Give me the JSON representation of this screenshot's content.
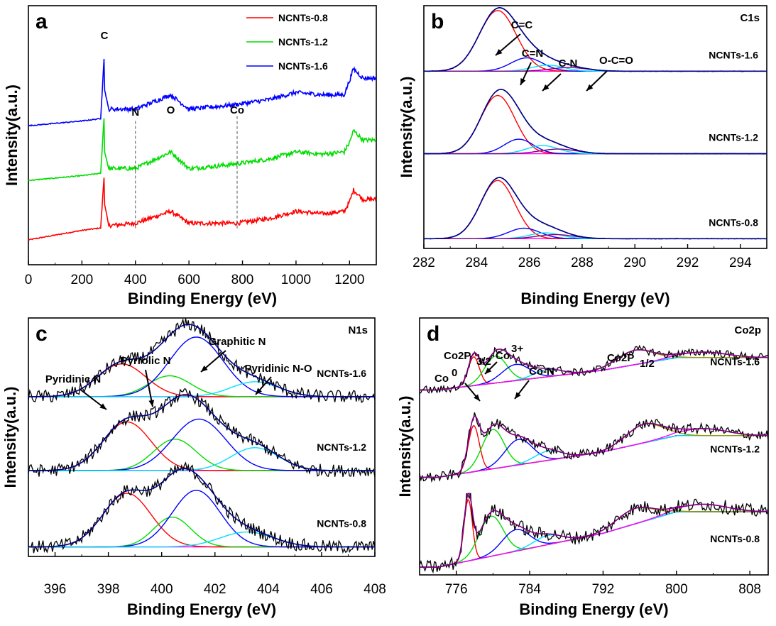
{
  "chart_data": [
    {
      "id": "a",
      "type": "line",
      "panel_label": "a",
      "xlabel": "Binding Energy (eV)",
      "ylabel": "Intensity(a.u.)",
      "xlim": [
        0,
        1300
      ],
      "xticks": [
        0,
        200,
        400,
        600,
        800,
        1000,
        1200
      ],
      "legend": {
        "position": "top-right",
        "entries": [
          "NCNTs-0.8",
          "NCNTs-1.2",
          "NCNTs-1.6"
        ]
      },
      "peak_labels": [
        {
          "text": "C",
          "x": 284
        },
        {
          "text": "N",
          "x": 400
        },
        {
          "text": "O",
          "x": 532
        },
        {
          "text": "Co",
          "x": 780
        }
      ],
      "series": [
        {
          "name": "NCNTs-0.8",
          "color": "#ff0000",
          "x": [
            0,
            100,
            200,
            270,
            283,
            284,
            285,
            300,
            400,
            532,
            600,
            700,
            780,
            900,
            1000,
            1100,
            1180,
            1200,
            1215,
            1250,
            1300
          ],
          "y": [
            0.03,
            0.05,
            0.07,
            0.08,
            0.3,
            0.55,
            0.18,
            0.09,
            0.1,
            0.15,
            0.1,
            0.1,
            0.1,
            0.12,
            0.15,
            0.14,
            0.15,
            0.19,
            0.24,
            0.2,
            0.2
          ]
        },
        {
          "name": "NCNTs-1.2",
          "color": "#00dd00",
          "x": [
            0,
            100,
            200,
            270,
            283,
            284,
            285,
            300,
            400,
            532,
            600,
            700,
            780,
            900,
            1000,
            1100,
            1180,
            1200,
            1215,
            1250,
            1300
          ],
          "y": [
            0.28,
            0.29,
            0.3,
            0.31,
            0.55,
            0.82,
            0.4,
            0.33,
            0.33,
            0.4,
            0.33,
            0.34,
            0.35,
            0.37,
            0.4,
            0.39,
            0.4,
            0.44,
            0.49,
            0.45,
            0.45
          ]
        },
        {
          "name": "NCNTs-1.6",
          "color": "#0000ff",
          "x": [
            0,
            100,
            200,
            270,
            283,
            284,
            285,
            300,
            400,
            532,
            600,
            700,
            780,
            900,
            1000,
            1100,
            1180,
            1200,
            1215,
            1250,
            1300
          ],
          "y": [
            0.51,
            0.52,
            0.53,
            0.54,
            0.8,
            1.0,
            0.66,
            0.58,
            0.58,
            0.64,
            0.58,
            0.59,
            0.6,
            0.62,
            0.65,
            0.64,
            0.64,
            0.7,
            0.75,
            0.71,
            0.71
          ]
        }
      ]
    },
    {
      "id": "b",
      "type": "line",
      "panel_label": "b",
      "panel_tag": "C1s",
      "xlabel": "Binding Energy (eV)",
      "ylabel": "Intensity(a.u.)",
      "xlim": [
        282,
        295
      ],
      "xticks": [
        282,
        284,
        286,
        288,
        290,
        292,
        294
      ],
      "stack": [
        {
          "name": "NCNTs-1.6",
          "baseline": 0.73,
          "height": 0.25,
          "components": [
            {
              "center": 284.8,
              "width": 0.7,
              "amp": 1.0
            },
            {
              "center": 285.9,
              "width": 0.6,
              "amp": 0.22
            },
            {
              "center": 286.7,
              "width": 0.6,
              "amp": 0.1
            },
            {
              "center": 287.5,
              "width": 0.7,
              "amp": 0.06
            }
          ]
        },
        {
          "name": "NCNTs-1.2",
          "baseline": 0.39,
          "height": 0.24,
          "components": [
            {
              "center": 284.8,
              "width": 0.65,
              "amp": 1.0
            },
            {
              "center": 285.6,
              "width": 0.55,
              "amp": 0.25
            },
            {
              "center": 286.5,
              "width": 0.6,
              "amp": 0.14
            },
            {
              "center": 287.1,
              "width": 0.7,
              "amp": 0.08
            }
          ]
        },
        {
          "name": "NCNTs-0.8",
          "baseline": 0.04,
          "height": 0.24,
          "components": [
            {
              "center": 284.8,
              "width": 0.65,
              "amp": 1.0
            },
            {
              "center": 285.8,
              "width": 0.6,
              "amp": 0.18
            },
            {
              "center": 286.6,
              "width": 0.6,
              "amp": 0.1
            },
            {
              "center": 287.0,
              "width": 0.7,
              "amp": 0.07
            }
          ]
        }
      ],
      "annotations": [
        "C=C",
        "C=N",
        "C-N",
        "O-C=O"
      ]
    },
    {
      "id": "c",
      "type": "line",
      "panel_label": "c",
      "panel_tag": "N1s",
      "xlabel": "Binding Energy (eV)",
      "ylabel": "Intensity(a.u.)",
      "xlim": [
        395,
        408
      ],
      "xticks": [
        396,
        398,
        400,
        402,
        404,
        406,
        408
      ],
      "stack": [
        {
          "name": "NCNTs-1.6",
          "baseline": 0.67,
          "height": 0.25,
          "components": [
            {
              "center": 398.5,
              "width": 0.9,
              "amp": 0.55
            },
            {
              "center": 400.3,
              "width": 0.8,
              "amp": 0.35
            },
            {
              "center": 401.3,
              "width": 1.0,
              "amp": 1.0
            },
            {
              "center": 403.5,
              "width": 0.9,
              "amp": 0.25
            }
          ]
        },
        {
          "name": "NCNTs-1.2",
          "baseline": 0.36,
          "height": 0.24,
          "components": [
            {
              "center": 398.7,
              "width": 0.9,
              "amp": 0.85
            },
            {
              "center": 400.5,
              "width": 0.8,
              "amp": 0.55
            },
            {
              "center": 401.4,
              "width": 1.0,
              "amp": 0.9
            },
            {
              "center": 403.5,
              "width": 0.9,
              "amp": 0.4
            }
          ]
        },
        {
          "name": "NCNTs-0.8",
          "baseline": 0.04,
          "height": 0.25,
          "components": [
            {
              "center": 398.7,
              "width": 0.9,
              "amp": 0.9
            },
            {
              "center": 400.4,
              "width": 0.7,
              "amp": 0.5
            },
            {
              "center": 401.3,
              "width": 0.9,
              "amp": 0.95
            },
            {
              "center": 403.2,
              "width": 1.0,
              "amp": 0.25
            }
          ]
        }
      ],
      "annotations": [
        "Pyridinic N",
        "Pyrrolic N",
        "Graphitic N",
        "Pyridinic N-O"
      ]
    },
    {
      "id": "d",
      "type": "line",
      "panel_label": "d",
      "panel_tag": "Co2p",
      "xlabel": "Binding Energy (eV)",
      "ylabel": "Intensity(a.u.)",
      "xlim": [
        772,
        810
      ],
      "xticks": [
        776,
        784,
        792,
        800,
        808
      ],
      "stack": [
        {
          "name": "NCNTs-1.6",
          "baseline": 0.72,
          "height": 0.14,
          "components": [
            {
              "center": 777.9,
              "width": 0.6,
              "amp": 0.8
            },
            {
              "center": 780.3,
              "width": 1.2,
              "amp": 0.75
            },
            {
              "center": 782.5,
              "width": 1.5,
              "amp": 0.45
            },
            {
              "center": 786.0,
              "width": 1.5,
              "amp": 0.2
            },
            {
              "center": 795.5,
              "width": 2.0,
              "amp": 0.4
            },
            {
              "center": 803.0,
              "width": 2.5,
              "amp": 0.15
            }
          ]
        },
        {
          "name": "NCNTs-1.2",
          "baseline": 0.38,
          "height": 0.18,
          "components": [
            {
              "center": 777.9,
              "width": 0.6,
              "amp": 1.0
            },
            {
              "center": 780.0,
              "width": 1.2,
              "amp": 0.85
            },
            {
              "center": 782.8,
              "width": 1.5,
              "amp": 0.55
            },
            {
              "center": 786.0,
              "width": 1.5,
              "amp": 0.2
            },
            {
              "center": 796.5,
              "width": 2.0,
              "amp": 0.4
            },
            {
              "center": 803.0,
              "width": 2.5,
              "amp": 0.15
            }
          ]
        },
        {
          "name": "NCNTs-0.8",
          "baseline": 0.03,
          "height": 0.24,
          "components": [
            {
              "center": 777.3,
              "width": 0.45,
              "amp": 1.0
            },
            {
              "center": 779.8,
              "width": 1.3,
              "amp": 0.65
            },
            {
              "center": 782.5,
              "width": 1.5,
              "amp": 0.35
            },
            {
              "center": 786.0,
              "width": 1.5,
              "amp": 0.15
            },
            {
              "center": 795.5,
              "width": 2.0,
              "amp": 0.25
            },
            {
              "center": 803.0,
              "width": 2.5,
              "amp": 0.12
            }
          ]
        }
      ],
      "annotations": [
        "Co",
        "0",
        "Co2P",
        "3/2",
        "Co",
        "3+",
        "Co-N",
        "Co2P",
        "1/2"
      ]
    }
  ],
  "colors": {
    "red": "#ff0000",
    "green": "#00dd00",
    "blue": "#0000ff",
    "cyan": "#00e0ff",
    "magenta": "#ff00ff",
    "olive": "#999900",
    "purple": "#800080",
    "navy": "#00008b",
    "black": "#000000"
  }
}
